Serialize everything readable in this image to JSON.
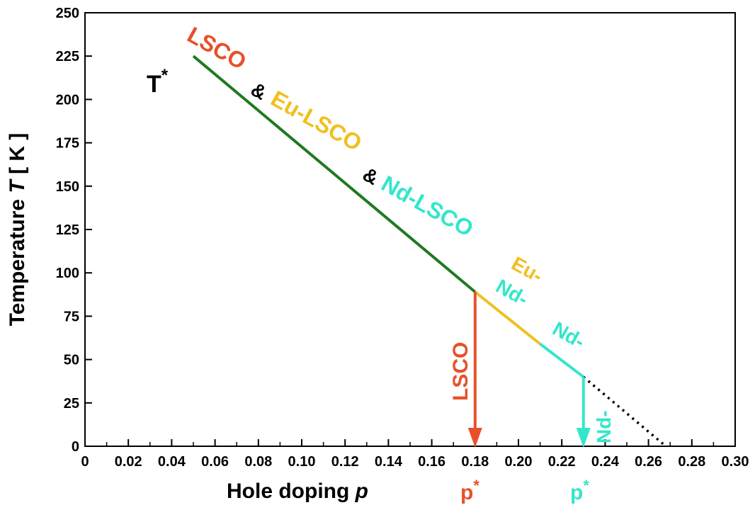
{
  "chart_data": {
    "type": "line",
    "xlabel_text": "Hole doping ",
    "xlabel_var": "p",
    "ylabel_text": "Temperature ",
    "ylabel_var": "T",
    "ylabel_unit": " [ K ]",
    "xlim": [
      0,
      0.3
    ],
    "ylim": [
      0,
      250
    ],
    "x_ticks": [
      0,
      0.02,
      0.04,
      0.06,
      0.08,
      0.1,
      0.12,
      0.14,
      0.16,
      0.18,
      0.2,
      0.22,
      0.24,
      0.26,
      0.28,
      0.3
    ],
    "x_tick_labels": [
      "0",
      "0.02",
      "0.04",
      "0.06",
      "0.08",
      "0.10",
      "0.12",
      "0.14",
      "0.16",
      "0.18",
      "0.20",
      "0.22",
      "0.24",
      "0.26",
      "0.28",
      "0.30"
    ],
    "y_ticks": [
      0,
      25,
      50,
      75,
      100,
      125,
      150,
      175,
      200,
      225,
      250
    ],
    "y_tick_labels": [
      "0",
      "25",
      "50",
      "75",
      "100",
      "125",
      "150",
      "175",
      "200",
      "225",
      "250"
    ],
    "series": [
      {
        "color": "#1f7a1f",
        "style": "solid",
        "points": [
          [
            0.05,
            225
          ],
          [
            0.18,
            89
          ]
        ]
      },
      {
        "color": "#f0c020",
        "style": "solid",
        "points": [
          [
            0.18,
            89
          ],
          [
            0.21,
            59
          ]
        ]
      },
      {
        "color": "#33e6cc",
        "style": "solid",
        "points": [
          [
            0.21,
            59
          ],
          [
            0.23,
            40
          ]
        ]
      },
      {
        "color": "#000000",
        "style": "dotted",
        "points": [
          [
            0.23,
            40
          ],
          [
            0.268,
            0
          ]
        ]
      }
    ],
    "tstar_label": {
      "text": "T",
      "sup": "*"
    },
    "annotations": [
      {
        "text": "LSCO",
        "color": "#e8502a"
      },
      {
        "text": "&",
        "color": "#000000"
      },
      {
        "text": "Eu-LSCO",
        "color": "#f0c020"
      },
      {
        "text": "&",
        "color": "#000000"
      },
      {
        "text": "Nd-LSCO",
        "color": "#33e6cc"
      },
      {
        "text": "Eu-",
        "color": "#f0c020"
      },
      {
        "text": "Nd-",
        "color": "#33e6cc"
      },
      {
        "text": "Nd-",
        "color": "#33e6cc"
      },
      {
        "text": "Nd-",
        "color": "#33e6cc"
      },
      {
        "text": "LSCO",
        "color": "#e8502a"
      }
    ],
    "arrows": [
      {
        "x": 0.18,
        "y_from": 89,
        "y_to": 0,
        "color": "#e8502a",
        "label": "p",
        "label_sup": "*"
      },
      {
        "x": 0.23,
        "y_from": 40,
        "y_to": 0,
        "color": "#33e6cc",
        "label": "p",
        "label_sup": "*"
      }
    ],
    "grid": false
  }
}
